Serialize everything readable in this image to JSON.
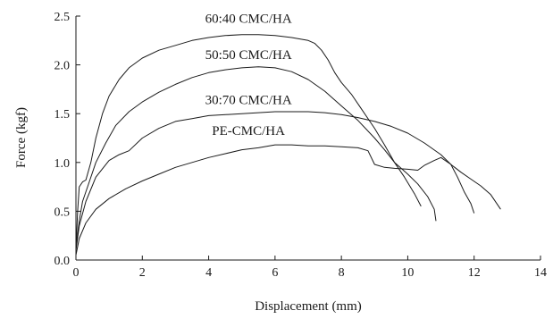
{
  "chart_data": {
    "type": "line",
    "xlabel": "Displacement (mm)",
    "ylabel": "Force (kgf)",
    "xlim": [
      0,
      14
    ],
    "ylim": [
      0,
      2.5
    ],
    "xticks": [
      "0",
      "2",
      "4",
      "6",
      "8",
      "10",
      "12",
      "14"
    ],
    "yticks": [
      "0.0",
      "0.5",
      "1.0",
      "1.5",
      "2.0",
      "2.5"
    ],
    "grid": false,
    "legend": "none",
    "series": [
      {
        "name": "60:40 CMC/HA",
        "label_at": [
          5.2,
          2.43
        ],
        "points": [
          [
            0,
            0.1
          ],
          [
            0.05,
            0.5
          ],
          [
            0.1,
            0.75
          ],
          [
            0.2,
            0.8
          ],
          [
            0.3,
            0.82
          ],
          [
            0.45,
            1.0
          ],
          [
            0.6,
            1.25
          ],
          [
            0.8,
            1.5
          ],
          [
            1.0,
            1.68
          ],
          [
            1.3,
            1.85
          ],
          [
            1.6,
            1.97
          ],
          [
            2.0,
            2.07
          ],
          [
            2.5,
            2.15
          ],
          [
            3.0,
            2.2
          ],
          [
            3.5,
            2.25
          ],
          [
            4.0,
            2.28
          ],
          [
            4.5,
            2.3
          ],
          [
            5.0,
            2.31
          ],
          [
            5.5,
            2.31
          ],
          [
            6.0,
            2.3
          ],
          [
            6.5,
            2.28
          ],
          [
            7.0,
            2.25
          ],
          [
            7.2,
            2.22
          ],
          [
            7.4,
            2.15
          ],
          [
            7.6,
            2.05
          ],
          [
            7.8,
            1.92
          ],
          [
            8.0,
            1.82
          ],
          [
            8.3,
            1.7
          ],
          [
            8.6,
            1.55
          ],
          [
            9.0,
            1.35
          ],
          [
            9.3,
            1.18
          ],
          [
            9.6,
            1.0
          ],
          [
            9.9,
            0.85
          ],
          [
            10.2,
            0.68
          ],
          [
            10.4,
            0.55
          ]
        ]
      },
      {
        "name": "50:50 CMC/HA",
        "label_at": [
          5.2,
          2.06
        ],
        "points": [
          [
            0,
            0.12
          ],
          [
            0.1,
            0.4
          ],
          [
            0.2,
            0.6
          ],
          [
            0.4,
            0.8
          ],
          [
            0.6,
            1.0
          ],
          [
            0.9,
            1.2
          ],
          [
            1.2,
            1.38
          ],
          [
            1.6,
            1.52
          ],
          [
            2.0,
            1.62
          ],
          [
            2.5,
            1.72
          ],
          [
            3.0,
            1.8
          ],
          [
            3.5,
            1.87
          ],
          [
            4.0,
            1.92
          ],
          [
            4.5,
            1.95
          ],
          [
            5.0,
            1.97
          ],
          [
            5.5,
            1.98
          ],
          [
            6.0,
            1.97
          ],
          [
            6.5,
            1.93
          ],
          [
            7.0,
            1.85
          ],
          [
            7.5,
            1.73
          ],
          [
            8.0,
            1.58
          ],
          [
            8.5,
            1.43
          ],
          [
            9.0,
            1.25
          ],
          [
            9.3,
            1.13
          ],
          [
            9.6,
            1.0
          ],
          [
            10.0,
            0.88
          ],
          [
            10.3,
            0.78
          ],
          [
            10.6,
            0.65
          ],
          [
            10.8,
            0.52
          ],
          [
            10.85,
            0.4
          ]
        ]
      },
      {
        "name": "30:70 CMC/HA",
        "label_at": [
          5.2,
          1.6
        ],
        "points": [
          [
            0,
            0.1
          ],
          [
            0.1,
            0.35
          ],
          [
            0.3,
            0.6
          ],
          [
            0.6,
            0.85
          ],
          [
            1.0,
            1.02
          ],
          [
            1.3,
            1.08
          ],
          [
            1.6,
            1.12
          ],
          [
            2.0,
            1.25
          ],
          [
            2.5,
            1.35
          ],
          [
            3.0,
            1.42
          ],
          [
            3.5,
            1.45
          ],
          [
            4.0,
            1.48
          ],
          [
            5.0,
            1.5
          ],
          [
            6.0,
            1.52
          ],
          [
            7.0,
            1.52
          ],
          [
            7.5,
            1.51
          ],
          [
            8.0,
            1.49
          ],
          [
            8.5,
            1.46
          ],
          [
            9.0,
            1.42
          ],
          [
            9.5,
            1.37
          ],
          [
            10.0,
            1.3
          ],
          [
            10.5,
            1.2
          ],
          [
            11.0,
            1.08
          ],
          [
            11.3,
            0.98
          ],
          [
            11.5,
            0.85
          ],
          [
            11.7,
            0.7
          ],
          [
            11.9,
            0.58
          ],
          [
            12.0,
            0.48
          ]
        ]
      },
      {
        "name": "PE-CMC/HA",
        "label_at": [
          5.2,
          1.28
        ],
        "points": [
          [
            0,
            0.05
          ],
          [
            0.1,
            0.22
          ],
          [
            0.3,
            0.38
          ],
          [
            0.6,
            0.52
          ],
          [
            1.0,
            0.63
          ],
          [
            1.5,
            0.73
          ],
          [
            2.0,
            0.81
          ],
          [
            2.5,
            0.88
          ],
          [
            3.0,
            0.95
          ],
          [
            3.5,
            1.0
          ],
          [
            4.0,
            1.05
          ],
          [
            4.5,
            1.09
          ],
          [
            5.0,
            1.13
          ],
          [
            5.5,
            1.15
          ],
          [
            6.0,
            1.18
          ],
          [
            6.5,
            1.18
          ],
          [
            7.0,
            1.17
          ],
          [
            7.5,
            1.17
          ],
          [
            8.0,
            1.16
          ],
          [
            8.5,
            1.15
          ],
          [
            8.8,
            1.12
          ],
          [
            9.0,
            0.98
          ],
          [
            9.3,
            0.95
          ],
          [
            9.6,
            0.94
          ],
          [
            10.0,
            0.93
          ],
          [
            10.3,
            0.92
          ],
          [
            10.5,
            0.97
          ],
          [
            10.8,
            1.02
          ],
          [
            11.0,
            1.05
          ],
          [
            11.3,
            0.98
          ],
          [
            11.6,
            0.9
          ],
          [
            11.9,
            0.83
          ],
          [
            12.2,
            0.76
          ],
          [
            12.5,
            0.67
          ],
          [
            12.8,
            0.52
          ]
        ]
      }
    ]
  }
}
